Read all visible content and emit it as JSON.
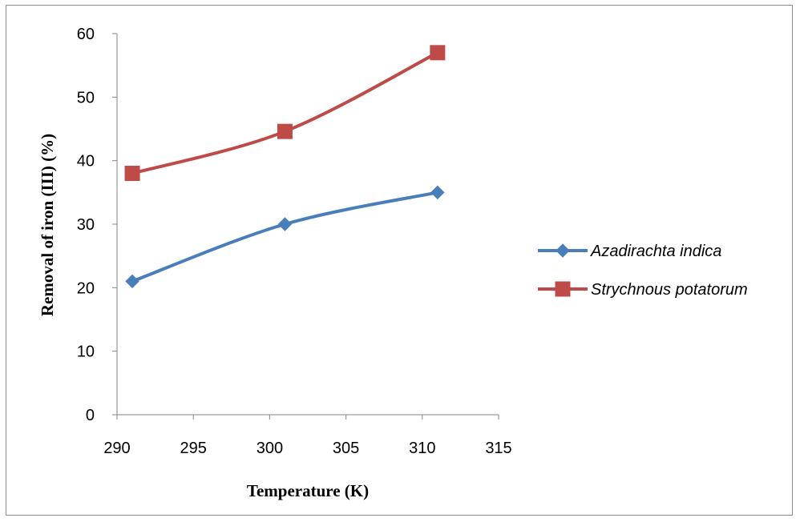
{
  "chart_data": {
    "type": "line",
    "xlabel": "Temperature (K)",
    "ylabel": "Removal of iron (III) (%)",
    "xlim": [
      290,
      315
    ],
    "ylim": [
      0,
      60
    ],
    "xticks": [
      290,
      295,
      300,
      305,
      310,
      315
    ],
    "yticks": [
      0,
      10,
      20,
      30,
      40,
      50,
      60
    ],
    "legend_position": "right",
    "grid": false,
    "series": [
      {
        "name": "Azadirachta indica",
        "color": "#4a7ebb",
        "marker": "diamond",
        "x": [
          291,
          301,
          311
        ],
        "y": [
          21,
          30,
          35
        ]
      },
      {
        "name": "Strychnous potatorum",
        "color": "#be4b48",
        "marker": "square",
        "x": [
          291,
          301,
          311
        ],
        "y": [
          38,
          44.6,
          57
        ]
      }
    ]
  }
}
